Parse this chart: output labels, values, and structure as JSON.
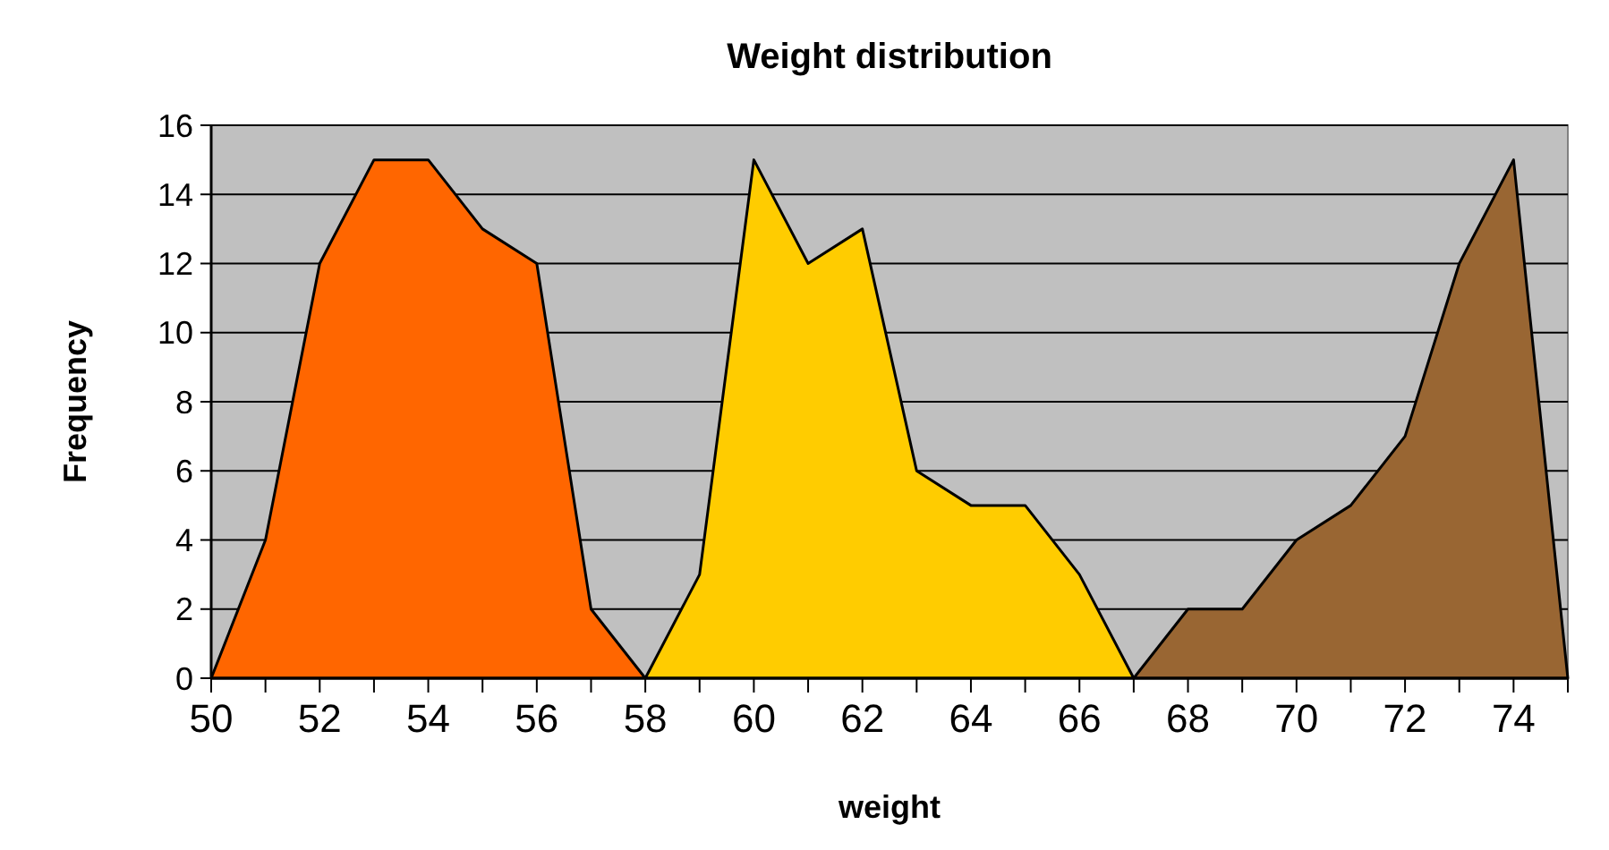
{
  "chart_data": {
    "type": "area",
    "title": "Weight distribution",
    "xlabel": "weight",
    "ylabel": "Frequency",
    "xlim": [
      50,
      75
    ],
    "xticks": [
      50,
      {
        "value": 51,
        "label": null
      },
      52,
      {
        "value": 53,
        "label": null
      },
      54,
      {
        "value": 55,
        "label": null
      },
      56,
      {
        "value": 57,
        "label": null
      },
      58,
      {
        "value": 59,
        "label": null
      },
      60,
      {
        "value": 61,
        "label": null
      },
      62,
      {
        "value": 63,
        "label": null
      },
      64,
      {
        "value": 65,
        "label": null
      },
      66,
      {
        "value": 67,
        "label": null
      },
      68,
      {
        "value": 69,
        "label": null
      },
      70,
      {
        "value": 71,
        "label": null
      },
      72,
      {
        "value": 73,
        "label": null
      },
      74,
      {
        "value": 75,
        "label": null
      }
    ],
    "ylim": [
      0,
      16
    ],
    "yticks": [
      0,
      2,
      4,
      6,
      8,
      10,
      12,
      14,
      16
    ],
    "grid": "y",
    "series": [
      {
        "color": "#ff6600",
        "x": [
          50,
          51,
          52,
          53,
          54,
          55,
          56,
          57,
          58
        ],
        "values": [
          0,
          4,
          12,
          15,
          15,
          13,
          12,
          2,
          0
        ]
      },
      {
        "color": "#ffcc00",
        "x": [
          58,
          59,
          60,
          61,
          62,
          63,
          64,
          65,
          66,
          67
        ],
        "values": [
          0,
          3,
          15,
          12,
          13,
          6,
          5,
          5,
          3,
          0
        ]
      },
      {
        "color": "#996633",
        "x": [
          67,
          68,
          69,
          70,
          71,
          72,
          73,
          74,
          75
        ],
        "values": [
          0,
          2,
          2,
          4,
          5,
          7,
          12,
          15,
          0
        ]
      }
    ]
  }
}
